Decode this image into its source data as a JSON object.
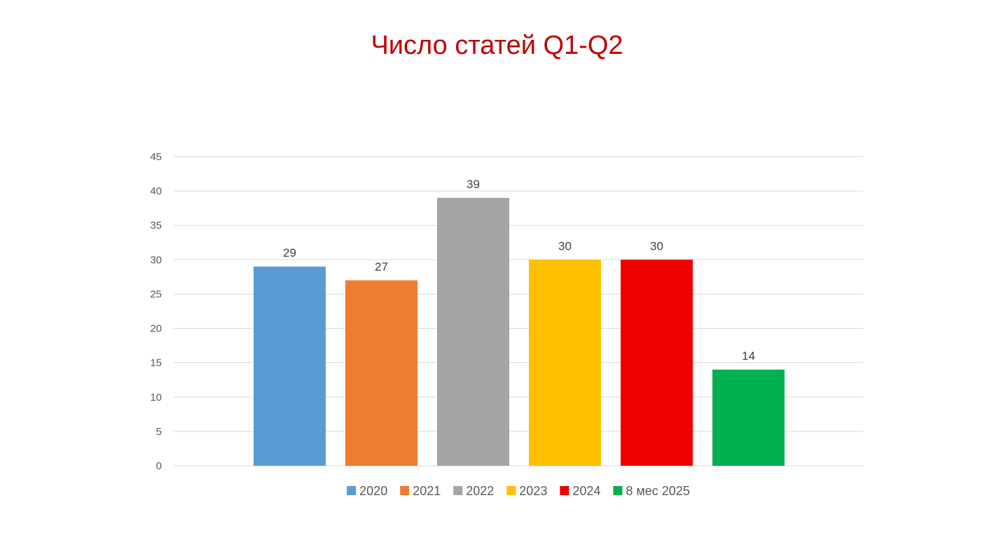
{
  "chart_data": {
    "type": "bar",
    "title": "Число статей Q1-Q2",
    "xlabel": "",
    "ylabel": "",
    "ylim": [
      0,
      45
    ],
    "yticks": [
      0,
      5,
      10,
      15,
      20,
      25,
      30,
      35,
      40,
      45
    ],
    "grid": true,
    "legend_position": "bottom",
    "series": [
      {
        "name": "2020",
        "value": 29,
        "color": "#5b9bd5"
      },
      {
        "name": "2021",
        "value": 27,
        "color": "#ed7d31"
      },
      {
        "name": "2022",
        "value": 39,
        "color": "#a5a5a5"
      },
      {
        "name": "2023",
        "value": 30,
        "color": "#ffc000"
      },
      {
        "name": "2024",
        "value": 30,
        "color": "#ee0000"
      },
      {
        "name": "8 мес 2025",
        "value": 14,
        "color": "#00b050"
      }
    ]
  }
}
